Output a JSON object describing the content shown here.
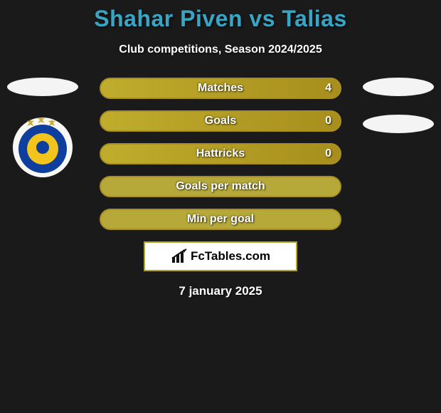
{
  "title": "Shahar Piven vs Talias",
  "subtitle": "Club competitions, Season 2024/2025",
  "date": "7 january 2025",
  "brand": "FcTables.com",
  "colors": {
    "title": "#39a5c4",
    "bar_border": "#a98f21",
    "bar_bg": "#b6a93a",
    "fill_gold_l": "#c0ad2c",
    "fill_gold_r": "#a78e1d",
    "brand_border": "#b3a22e"
  },
  "bars": [
    {
      "label": "Matches",
      "left": "",
      "right": "4",
      "fill_left_pct": 0,
      "fill_right_pct": 100
    },
    {
      "label": "Goals",
      "left": "",
      "right": "0",
      "fill_left_pct": 0,
      "fill_right_pct": 100
    },
    {
      "label": "Hattricks",
      "left": "",
      "right": "0",
      "fill_left_pct": 0,
      "fill_right_pct": 100
    },
    {
      "label": "Goals per match",
      "left": "",
      "right": "",
      "fill_left_pct": 0,
      "fill_right_pct": 0
    },
    {
      "label": "Min per goal",
      "left": "",
      "right": "",
      "fill_left_pct": 0,
      "fill_right_pct": 0
    }
  ]
}
